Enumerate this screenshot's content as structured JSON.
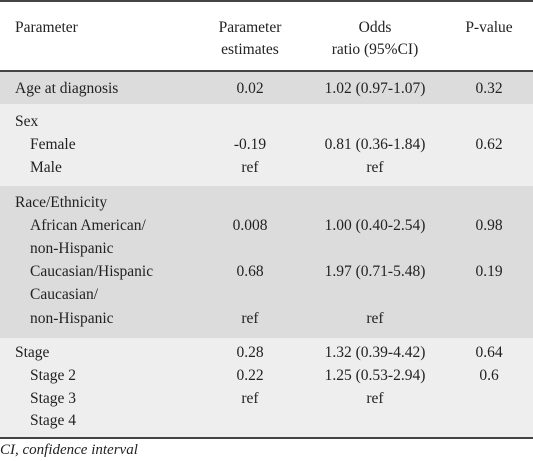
{
  "table": {
    "headers": {
      "parameter": "Parameter",
      "estimates_line1": "Parameter",
      "estimates_line2": "estimates",
      "odds_line1": "Odds",
      "odds_line2": "ratio  (95%CI)",
      "pvalue": "P-value"
    },
    "rows": {
      "age": {
        "parameter": "Age at diagnosis",
        "estimate": "0.02",
        "odds": "1.02 (0.97-1.07)",
        "p": "0.32"
      },
      "sex": {
        "label": "Sex",
        "female": {
          "parameter": "Female",
          "estimate": "-0.19",
          "odds": "0.81 (0.36-1.84)",
          "p": "0.62"
        },
        "male": {
          "parameter": "Male",
          "estimate": "ref",
          "odds": "ref"
        }
      },
      "race": {
        "label": "Race/Ethnicity",
        "aa_line1": "African American/",
        "aa_line2": "non-Hispanic",
        "aa": {
          "estimate": "0.008",
          "odds": "1.00 (0.40-2.54)",
          "p": "0.98"
        },
        "ch": {
          "parameter": "Caucasian/Hispanic",
          "estimate": "0.68",
          "odds": "1.97 (0.71-5.48)",
          "p": "0.19"
        },
        "cnh_line1": "Caucasian/",
        "cnh_line2": "non-Hispanic",
        "cnh": {
          "estimate": "ref",
          "odds": "ref"
        }
      },
      "stage": {
        "label": "Stage",
        "label_row": {
          "estimate": "0.28",
          "odds": "1.32 (0.39-4.42)",
          "p": "0.64"
        },
        "stage2": {
          "parameter": "Stage 2",
          "estimate": "0.22",
          "odds": "1.25 (0.53-2.94)",
          "p": "0.6"
        },
        "stage3": {
          "parameter": "Stage 3",
          "estimate": "ref",
          "odds": "ref"
        },
        "stage4": {
          "parameter": "Stage 4"
        }
      }
    }
  },
  "footnote": "CI, confidence interval",
  "colors": {
    "band_gray": "#dcdcdc",
    "band_light": "#eeeeee",
    "rule": "#444444"
  }
}
